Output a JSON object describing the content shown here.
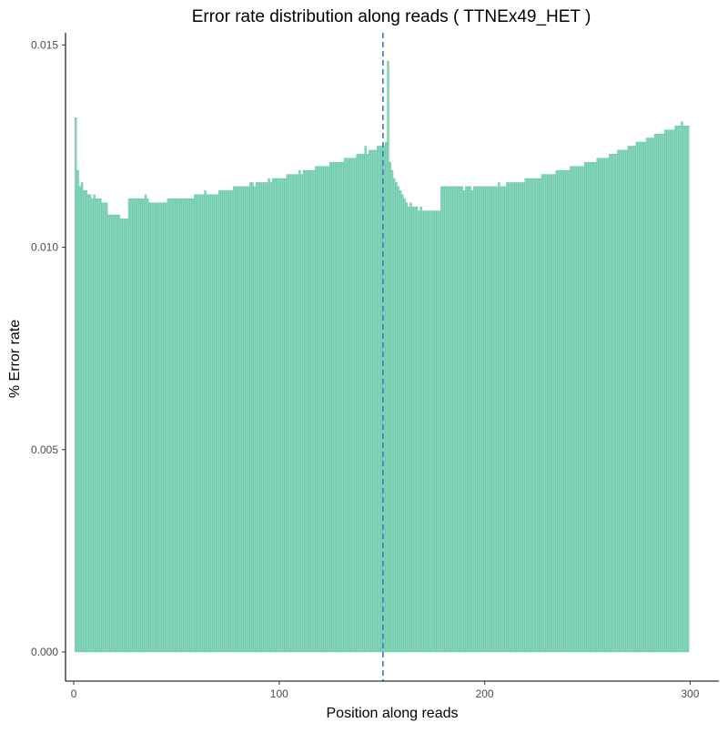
{
  "chart_data": {
    "type": "bar",
    "title": "Error rate distribution along reads ( TTNEx49_HET )",
    "xlabel": "Position along reads",
    "ylabel": "% Error rate",
    "xlim": [
      -4,
      314
    ],
    "ylim": [
      -0.00072,
      0.0153
    ],
    "x_ticks": [
      0,
      100,
      200,
      300
    ],
    "x_tick_labels": [
      "0",
      "100",
      "200",
      "300"
    ],
    "y_ticks": [
      0.0,
      0.005,
      0.01,
      0.015
    ],
    "y_tick_labels": [
      "0.000",
      "0.005",
      "0.010",
      "0.015"
    ],
    "grid": false,
    "legend": "none",
    "bar_fill": "#8ad5bc",
    "bar_stroke": "#4cbf98",
    "vline": {
      "x": 150.5,
      "color": "#3a78c0",
      "style": "dashed"
    },
    "x": {
      "start": 1,
      "end": 300,
      "step": 1
    },
    "values": [
      0.0132,
      0.0119,
      0.0115,
      0.0116,
      0.0114,
      0.0114,
      0.0113,
      0.0113,
      0.0112,
      0.0113,
      0.0112,
      0.0112,
      0.0112,
      0.0111,
      0.0111,
      0.0111,
      0.0108,
      0.0108,
      0.0108,
      0.0108,
      0.0108,
      0.0108,
      0.0107,
      0.0107,
      0.0107,
      0.0107,
      0.0112,
      0.0112,
      0.0112,
      0.0112,
      0.0112,
      0.0112,
      0.0112,
      0.0112,
      0.0113,
      0.0112,
      0.0111,
      0.0111,
      0.0111,
      0.0111,
      0.0111,
      0.0111,
      0.0111,
      0.0111,
      0.0111,
      0.0112,
      0.0112,
      0.0112,
      0.0112,
      0.0112,
      0.0112,
      0.0112,
      0.0112,
      0.0112,
      0.0112,
      0.0112,
      0.0112,
      0.0112,
      0.0113,
      0.0113,
      0.0113,
      0.0113,
      0.0113,
      0.0114,
      0.0113,
      0.0113,
      0.0113,
      0.0113,
      0.0113,
      0.0113,
      0.0114,
      0.0114,
      0.0114,
      0.0114,
      0.0114,
      0.0114,
      0.0114,
      0.0115,
      0.0115,
      0.0115,
      0.0115,
      0.0115,
      0.0115,
      0.0115,
      0.0115,
      0.0116,
      0.0116,
      0.0115,
      0.0116,
      0.0116,
      0.0116,
      0.0116,
      0.0116,
      0.0116,
      0.0117,
      0.0116,
      0.0117,
      0.0117,
      0.0117,
      0.0117,
      0.0117,
      0.0117,
      0.0117,
      0.0118,
      0.0118,
      0.0118,
      0.0118,
      0.0118,
      0.0118,
      0.0119,
      0.0118,
      0.0119,
      0.0119,
      0.0119,
      0.0119,
      0.0119,
      0.0119,
      0.012,
      0.012,
      0.012,
      0.012,
      0.012,
      0.012,
      0.012,
      0.0121,
      0.0121,
      0.0121,
      0.0121,
      0.0121,
      0.0121,
      0.0121,
      0.0122,
      0.0122,
      0.0122,
      0.0122,
      0.0122,
      0.0122,
      0.0123,
      0.0123,
      0.0123,
      0.0123,
      0.0125,
      0.0123,
      0.0124,
      0.0124,
      0.0124,
      0.0124,
      0.0125,
      0.0125,
      0.0125,
      0.0125,
      0.0126,
      0.0146,
      0.0121,
      0.0119,
      0.0117,
      0.0116,
      0.0115,
      0.0114,
      0.0113,
      0.0112,
      0.0111,
      0.011,
      0.0111,
      0.011,
      0.011,
      0.011,
      0.0109,
      0.011,
      0.0109,
      0.0109,
      0.0109,
      0.0109,
      0.0109,
      0.0109,
      0.0109,
      0.0109,
      0.0109,
      0.0115,
      0.0115,
      0.0115,
      0.0115,
      0.0115,
      0.0115,
      0.0115,
      0.0115,
      0.0115,
      0.0115,
      0.0115,
      0.0114,
      0.0115,
      0.0115,
      0.0115,
      0.0114,
      0.0115,
      0.0115,
      0.0115,
      0.0115,
      0.0115,
      0.0115,
      0.0115,
      0.0115,
      0.0115,
      0.0115,
      0.0115,
      0.0115,
      0.0116,
      0.0115,
      0.0115,
      0.0115,
      0.0116,
      0.0116,
      0.0116,
      0.0116,
      0.0116,
      0.0116,
      0.0116,
      0.0116,
      0.0116,
      0.0117,
      0.0117,
      0.0117,
      0.0117,
      0.0117,
      0.0117,
      0.0117,
      0.0117,
      0.0118,
      0.0118,
      0.0118,
      0.0118,
      0.0118,
      0.0118,
      0.0118,
      0.0119,
      0.0119,
      0.0119,
      0.0119,
      0.0119,
      0.0119,
      0.0119,
      0.012,
      0.012,
      0.012,
      0.012,
      0.012,
      0.012,
      0.012,
      0.0121,
      0.0121,
      0.0121,
      0.0121,
      0.0121,
      0.0121,
      0.0122,
      0.0122,
      0.0122,
      0.0122,
      0.0122,
      0.0122,
      0.0123,
      0.0123,
      0.0123,
      0.0123,
      0.0124,
      0.0124,
      0.0124,
      0.0124,
      0.0124,
      0.0125,
      0.0125,
      0.0125,
      0.0125,
      0.0126,
      0.0126,
      0.0126,
      0.0126,
      0.0126,
      0.0127,
      0.0127,
      0.0127,
      0.0127,
      0.0128,
      0.0128,
      0.0128,
      0.0128,
      0.0128,
      0.0129,
      0.0129,
      0.0129,
      0.0129,
      0.0129,
      0.013,
      0.013,
      0.013,
      0.0131,
      0.013,
      0.013,
      0.013
    ]
  }
}
